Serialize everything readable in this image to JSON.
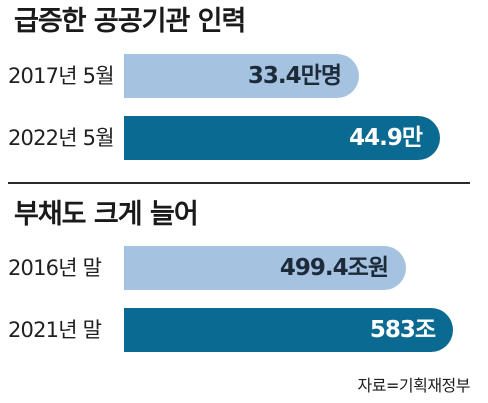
{
  "chart_data": [
    {
      "type": "bar",
      "orientation": "horizontal",
      "title": "급증한 공공기관 인력",
      "categories": [
        "2017년 5월",
        "2022년 5월"
      ],
      "values": [
        33.4,
        44.9
      ],
      "value_labels": [
        "33.4만명",
        "44.9만"
      ],
      "unit": "만명",
      "bar_colors": [
        "#a5c3e0",
        "#0b6a92"
      ],
      "xlim": [
        0,
        49.5
      ]
    },
    {
      "type": "bar",
      "orientation": "horizontal",
      "title": "부채도 크게 늘어",
      "categories": [
        "2016년 말",
        "2021년 말"
      ],
      "values": [
        499.4,
        583
      ],
      "value_labels": [
        "499.4조원",
        "583조"
      ],
      "unit": "조원",
      "bar_colors": [
        "#a5c3e0",
        "#0b6a92"
      ],
      "xlim": [
        0,
        617
      ]
    }
  ],
  "source": "자료=기획재정부"
}
